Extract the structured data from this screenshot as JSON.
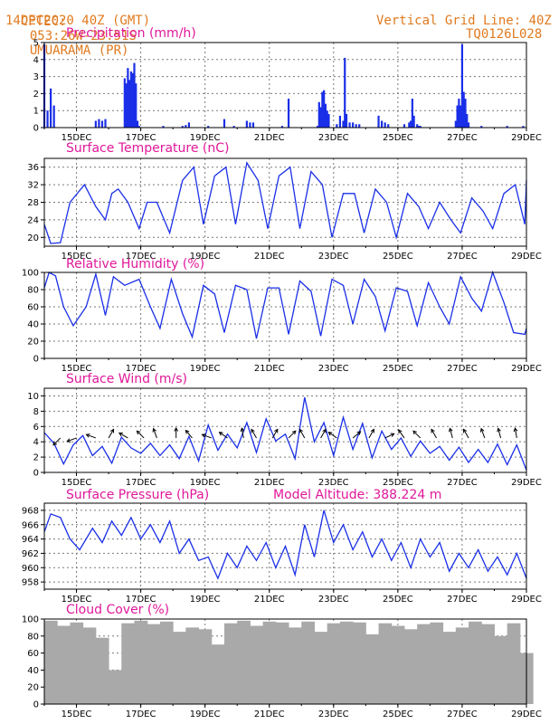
{
  "header": {
    "source": "CPTEC:",
    "coords": "053:26W-23:51S",
    "location": "UMUARAMA (PR)",
    "datetime": "14DEC2020 40Z (GMT)",
    "grid_note": "Vertical Grid Line: 40Z",
    "run_code": "TQ0126L028"
  },
  "colors": {
    "header": "#e07a1f",
    "title": "#e0189a",
    "series": "#1a2fe8",
    "cloud": "#a9a9a9",
    "arrow": "#000000"
  },
  "date_labels": [
    "15DEC",
    "17DEC",
    "19DEC",
    "21DEC",
    "23DEC",
    "25DEC",
    "27DEC",
    "29DEC"
  ],
  "chart_data": [
    {
      "type": "bar",
      "title": "Precipitation (mm/h)",
      "ylim": [
        0,
        5
      ],
      "yticks": [
        "0",
        "1",
        "2",
        "3",
        "4",
        "5"
      ],
      "x_range_days": [
        14.0,
        29.0
      ],
      "series": [
        {
          "x": [
            14.0,
            14.1,
            14.2,
            14.3,
            15.6,
            15.7,
            15.8,
            15.9,
            16.5,
            16.55,
            16.6,
            16.65,
            16.7,
            16.75,
            16.8,
            16.85,
            16.9,
            16.95,
            17.7,
            18.3,
            18.4,
            18.5,
            19.1,
            19.6,
            19.9,
            20.3,
            20.4,
            20.5,
            21.4,
            21.6,
            22.5,
            22.55,
            22.6,
            22.65,
            22.7,
            22.75,
            22.8,
            22.85,
            23.1,
            23.2,
            23.3,
            23.35,
            23.4,
            23.5,
            23.6,
            23.7,
            23.8,
            24.4,
            24.5,
            24.6,
            24.7,
            25.2,
            25.35,
            25.4,
            25.45,
            25.5,
            25.6,
            25.65,
            25.7,
            26.8,
            26.85,
            26.9,
            26.95,
            27.0,
            27.05,
            27.1,
            27.15,
            27.2,
            27.6,
            28.4,
            28.9
          ],
          "values": [
            4.9,
            1.0,
            2.3,
            1.3,
            0.4,
            0.5,
            0.4,
            0.5,
            2.9,
            2.6,
            3.5,
            2.8,
            3.3,
            3.2,
            3.8,
            2.6,
            0.4,
            0.1,
            0.1,
            0.1,
            0.15,
            0.3,
            0.1,
            0.5,
            0.1,
            0.4,
            0.3,
            0.3,
            0.1,
            1.7,
            0.1,
            1.5,
            1.2,
            2.1,
            2.2,
            1.4,
            1.0,
            0.8,
            0.2,
            0.7,
            0.4,
            4.1,
            0.8,
            0.3,
            0.3,
            0.2,
            0.2,
            0.7,
            0.4,
            0.3,
            0.2,
            0.2,
            0.3,
            0.4,
            1.7,
            0.7,
            0.2,
            0.1,
            0.1,
            0.4,
            1.3,
            1.7,
            1.3,
            4.9,
            2.1,
            1.7,
            0.8,
            0.3,
            0.1,
            0.1,
            0.1
          ]
        }
      ]
    },
    {
      "type": "line",
      "title": "Surface Temperature (nC)",
      "ylim": [
        18,
        38
      ],
      "yticks": [
        "20",
        "24",
        "28",
        "32",
        "36"
      ],
      "series": [
        {
          "x": [
            14.0,
            14.2,
            14.5,
            14.8,
            15.25,
            15.6,
            15.9,
            16.1,
            16.3,
            16.6,
            16.95,
            17.2,
            17.5,
            17.9,
            18.3,
            18.65,
            18.95,
            19.3,
            19.65,
            19.95,
            20.3,
            20.65,
            20.95,
            21.3,
            21.65,
            21.95,
            22.3,
            22.65,
            22.95,
            23.3,
            23.65,
            23.95,
            24.3,
            24.65,
            24.95,
            25.3,
            25.65,
            25.95,
            26.3,
            26.65,
            26.95,
            27.3,
            27.65,
            27.95,
            28.3,
            28.65,
            28.95,
            29.0
          ],
          "values": [
            23,
            18.6,
            18.8,
            28,
            32,
            27,
            24,
            30,
            31,
            28,
            22,
            28,
            28,
            21,
            33,
            36,
            23,
            34,
            36,
            23,
            37,
            33,
            22,
            34,
            36,
            22,
            35,
            32,
            20,
            30,
            30,
            21,
            31,
            28,
            20,
            30,
            27,
            22,
            28,
            24,
            21,
            29,
            26,
            22,
            30,
            32,
            23,
            33
          ]
        }
      ]
    },
    {
      "type": "line",
      "title": "Relative Humidity (%)",
      "ylim": [
        0,
        100
      ],
      "yticks": [
        "0",
        "20",
        "40",
        "60",
        "80",
        "100"
      ],
      "series": [
        {
          "x": [
            14.0,
            14.15,
            14.35,
            14.6,
            14.9,
            15.3,
            15.6,
            15.9,
            16.15,
            16.5,
            16.95,
            17.3,
            17.6,
            17.95,
            18.3,
            18.6,
            18.95,
            19.3,
            19.6,
            19.95,
            20.3,
            20.6,
            20.95,
            21.3,
            21.6,
            21.95,
            22.3,
            22.6,
            22.95,
            23.3,
            23.6,
            23.95,
            24.3,
            24.6,
            24.95,
            25.3,
            25.6,
            25.95,
            26.3,
            26.6,
            26.95,
            27.3,
            27.6,
            27.95,
            28.3,
            28.6,
            28.95,
            29.0
          ],
          "values": [
            82,
            100,
            96,
            60,
            38,
            60,
            98,
            50,
            95,
            85,
            92,
            60,
            35,
            92,
            52,
            25,
            85,
            75,
            30,
            85,
            80,
            23,
            82,
            82,
            28,
            90,
            78,
            26,
            92,
            85,
            40,
            92,
            72,
            32,
            82,
            78,
            38,
            88,
            60,
            40,
            95,
            70,
            55,
            100,
            65,
            30,
            28,
            35
          ]
        }
      ]
    },
    {
      "type": "line",
      "title": "Surface Wind (m/s)",
      "ylim": [
        0,
        11
      ],
      "yticks": [
        "0",
        "2",
        "4",
        "6",
        "8",
        "10"
      ],
      "series": [
        {
          "x": [
            14.0,
            14.3,
            14.6,
            14.9,
            15.2,
            15.5,
            15.8,
            16.1,
            16.4,
            16.7,
            17.0,
            17.3,
            17.6,
            17.9,
            18.2,
            18.5,
            18.8,
            19.1,
            19.4,
            19.7,
            20.0,
            20.3,
            20.6,
            20.9,
            21.2,
            21.5,
            21.8,
            22.1,
            22.4,
            22.7,
            23.0,
            23.3,
            23.6,
            23.9,
            24.2,
            24.5,
            24.8,
            25.1,
            25.4,
            25.7,
            26.0,
            26.3,
            26.6,
            26.9,
            27.2,
            27.5,
            27.8,
            28.1,
            28.4,
            28.7,
            29.0
          ],
          "values": [
            5.2,
            3.8,
            1.1,
            3.6,
            4.8,
            2.2,
            3.4,
            1.2,
            4.6,
            3.2,
            2.5,
            3.8,
            2.2,
            3.6,
            1.8,
            4.7,
            1.5,
            6.2,
            2.9,
            5.0,
            3.2,
            6.5,
            2.6,
            7.0,
            4.1,
            5.0,
            1.8,
            9.8,
            4.0,
            6.5,
            2.2,
            7.2,
            3.0,
            6.4,
            1.9,
            5.4,
            3.0,
            4.5,
            2.1,
            4.1,
            2.5,
            3.4,
            1.6,
            3.3,
            1.3,
            3.0,
            1.3,
            3.7,
            1.0,
            3.6,
            0.3
          ]
        }
      ],
      "vectors": [
        {
          "x": 14.5,
          "dir_deg": 135
        },
        {
          "x": 15.0,
          "dir_deg": 160
        },
        {
          "x": 15.6,
          "dir_deg": 200
        },
        {
          "x": 16.0,
          "dir_deg": 300
        },
        {
          "x": 16.6,
          "dir_deg": 210
        },
        {
          "x": 17.1,
          "dir_deg": 225
        },
        {
          "x": 17.5,
          "dir_deg": 250
        },
        {
          "x": 18.1,
          "dir_deg": 270
        },
        {
          "x": 18.6,
          "dir_deg": 230
        },
        {
          "x": 19.2,
          "dir_deg": 200
        },
        {
          "x": 19.7,
          "dir_deg": 215
        },
        {
          "x": 20.2,
          "dir_deg": 260
        },
        {
          "x": 20.6,
          "dir_deg": 240
        },
        {
          "x": 21.1,
          "dir_deg": 300
        },
        {
          "x": 21.6,
          "dir_deg": 315
        },
        {
          "x": 22.1,
          "dir_deg": 240
        },
        {
          "x": 22.6,
          "dir_deg": 300
        },
        {
          "x": 23.1,
          "dir_deg": 215
        },
        {
          "x": 23.6,
          "dir_deg": 320
        },
        {
          "x": 24.1,
          "dir_deg": 300
        },
        {
          "x": 24.6,
          "dir_deg": 335
        },
        {
          "x": 25.2,
          "dir_deg": 235
        },
        {
          "x": 25.7,
          "dir_deg": 225
        },
        {
          "x": 26.2,
          "dir_deg": 240
        },
        {
          "x": 26.7,
          "dir_deg": 255
        },
        {
          "x": 27.2,
          "dir_deg": 240
        },
        {
          "x": 27.7,
          "dir_deg": 250
        },
        {
          "x": 28.2,
          "dir_deg": 255
        },
        {
          "x": 28.7,
          "dir_deg": 260
        }
      ]
    },
    {
      "type": "line",
      "title": "Surface Pressure (hPa)",
      "annotation": "Model Altitude: 388.224 m",
      "ylim": [
        957,
        969
      ],
      "yticks": [
        "958",
        "960",
        "962",
        "964",
        "966",
        "968"
      ],
      "series": [
        {
          "x": [
            14.0,
            14.2,
            14.5,
            14.8,
            15.1,
            15.5,
            15.8,
            16.1,
            16.4,
            16.7,
            17.0,
            17.3,
            17.6,
            17.9,
            18.2,
            18.5,
            18.8,
            19.1,
            19.4,
            19.7,
            20.0,
            20.3,
            20.6,
            20.9,
            21.2,
            21.5,
            21.8,
            22.1,
            22.4,
            22.7,
            23.0,
            23.3,
            23.6,
            23.9,
            24.2,
            24.5,
            24.8,
            25.1,
            25.4,
            25.7,
            26.0,
            26.3,
            26.6,
            26.9,
            27.2,
            27.5,
            27.8,
            28.1,
            28.4,
            28.7,
            29.0
          ],
          "values": [
            965,
            967.5,
            967,
            964,
            962.5,
            965.5,
            963.5,
            966.5,
            964.5,
            967,
            964,
            966,
            963.5,
            966.5,
            962,
            964,
            961,
            961.5,
            958.5,
            962,
            960,
            963,
            961,
            963.5,
            960,
            963,
            959,
            966,
            961.5,
            968,
            963.5,
            966,
            962.5,
            965,
            961.5,
            964,
            961,
            963.5,
            960,
            964,
            961.5,
            963.5,
            959.5,
            962,
            960,
            962.5,
            959.5,
            961.5,
            959,
            962,
            958.5
          ]
        }
      ]
    },
    {
      "type": "bar",
      "title": "Cloud Cover (%)",
      "ylim": [
        0,
        100
      ],
      "yticks": [
        "0",
        "20",
        "40",
        "60",
        "80",
        "100"
      ],
      "series": [
        {
          "x": [
            14.0,
            14.4,
            14.8,
            15.2,
            15.6,
            16.0,
            16.4,
            16.8,
            17.2,
            17.6,
            18.0,
            18.4,
            18.8,
            19.2,
            19.6,
            20.0,
            20.4,
            20.8,
            21.2,
            21.6,
            22.0,
            22.4,
            22.8,
            23.2,
            23.6,
            24.0,
            24.4,
            24.8,
            25.2,
            25.6,
            26.0,
            26.4,
            26.8,
            27.2,
            27.6,
            28.0,
            28.4,
            28.8
          ],
          "values": [
            98,
            92,
            96,
            90,
            78,
            40,
            95,
            98,
            94,
            97,
            85,
            90,
            88,
            70,
            95,
            98,
            92,
            97,
            96,
            90,
            97,
            85,
            95,
            97,
            96,
            82,
            95,
            92,
            88,
            94,
            96,
            85,
            90,
            97,
            94,
            80,
            95,
            60
          ]
        }
      ]
    }
  ]
}
